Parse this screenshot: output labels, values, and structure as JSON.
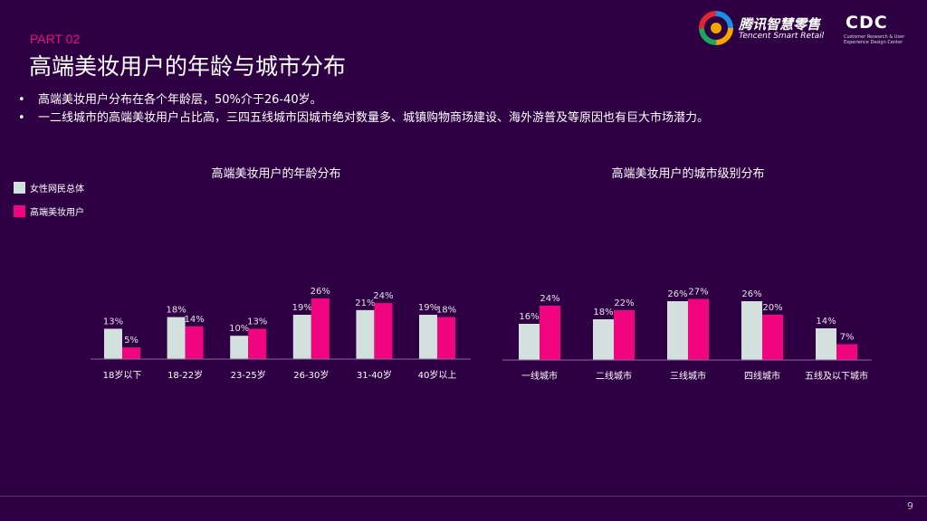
{
  "header": {
    "part": "PART 02",
    "title": "高端美妆用户的年龄与城市分布"
  },
  "logos": {
    "tencent_name": "腾讯智慧零售",
    "tencent_en": "Tencent Smart Retail",
    "cdc": "CDC",
    "cdc_sub": "Customer Research & User Experience Design Center"
  },
  "bullets": [
    "高端美妆用户分布在各个年龄层，50%介于26-40岁。",
    "一二线城市的高端美妆用户占比高，三四五线城市因城市绝对数量多、城镇购物商场建设、海外游普及等原因也有巨大市场潜力。"
  ],
  "legend": [
    {
      "label": "女性网民总体",
      "color": "#d3e0de"
    },
    {
      "label": "高端美妆用户",
      "color": "#f0047f"
    }
  ],
  "page_number": "9",
  "chart_data": [
    {
      "type": "bar",
      "title": "高端美妆用户的年龄分布",
      "categories": [
        "18岁以下",
        "18-22岁",
        "23-25岁",
        "26-30岁",
        "31-40岁",
        "40岁以上"
      ],
      "series": [
        {
          "name": "女性网民总体",
          "values": [
            13,
            18,
            10,
            19,
            21,
            19
          ]
        },
        {
          "name": "高端美妆用户",
          "values": [
            5,
            14,
            13,
            26,
            24,
            18
          ]
        }
      ],
      "unit": "%"
    },
    {
      "type": "bar",
      "title": "高端美妆用户的城市级别分布",
      "categories": [
        "一线城市",
        "二线城市",
        "三线城市",
        "四线城市",
        "五线及以下城市"
      ],
      "series": [
        {
          "name": "女性网民总体",
          "values": [
            16,
            18,
            26,
            26,
            14
          ]
        },
        {
          "name": "高端美妆用户",
          "values": [
            24,
            22,
            27,
            20,
            7
          ]
        }
      ],
      "unit": "%"
    }
  ]
}
